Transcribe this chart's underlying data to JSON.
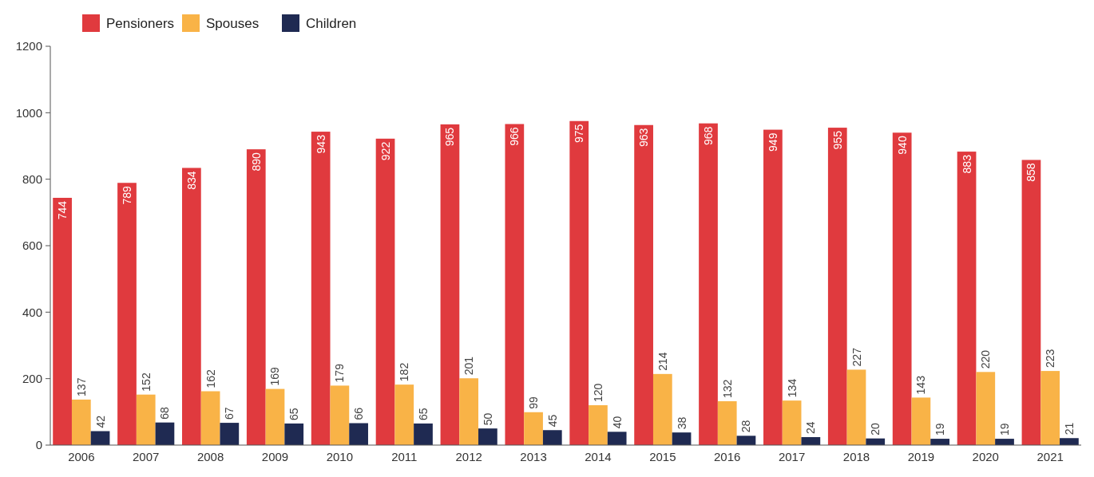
{
  "chart_data": {
    "type": "bar",
    "categories": [
      "2006",
      "2007",
      "2008",
      "2009",
      "2010",
      "2011",
      "2012",
      "2013",
      "2014",
      "2015",
      "2016",
      "2017",
      "2018",
      "2019",
      "2020",
      "2021"
    ],
    "series": [
      {
        "name": "Pensioners",
        "color": "#e03a3e",
        "values": [
          744,
          789,
          834,
          890,
          943,
          922,
          965,
          966,
          975,
          963,
          968,
          949,
          955,
          940,
          883,
          858
        ]
      },
      {
        "name": "Spouses",
        "color": "#f9b347",
        "values": [
          137,
          152,
          162,
          169,
          179,
          182,
          201,
          99,
          120,
          214,
          132,
          134,
          227,
          143,
          220,
          223
        ]
      },
      {
        "name": "Children",
        "color": "#1f2a52",
        "values": [
          42,
          68,
          67,
          65,
          66,
          65,
          50,
          45,
          40,
          38,
          28,
          24,
          20,
          19,
          19,
          21
        ]
      }
    ],
    "ylim": [
      0,
      1200
    ],
    "yticks": [
      0,
      200,
      400,
      600,
      800,
      1000,
      1200
    ],
    "grid": false,
    "legend": "top left",
    "data_labels": true
  }
}
